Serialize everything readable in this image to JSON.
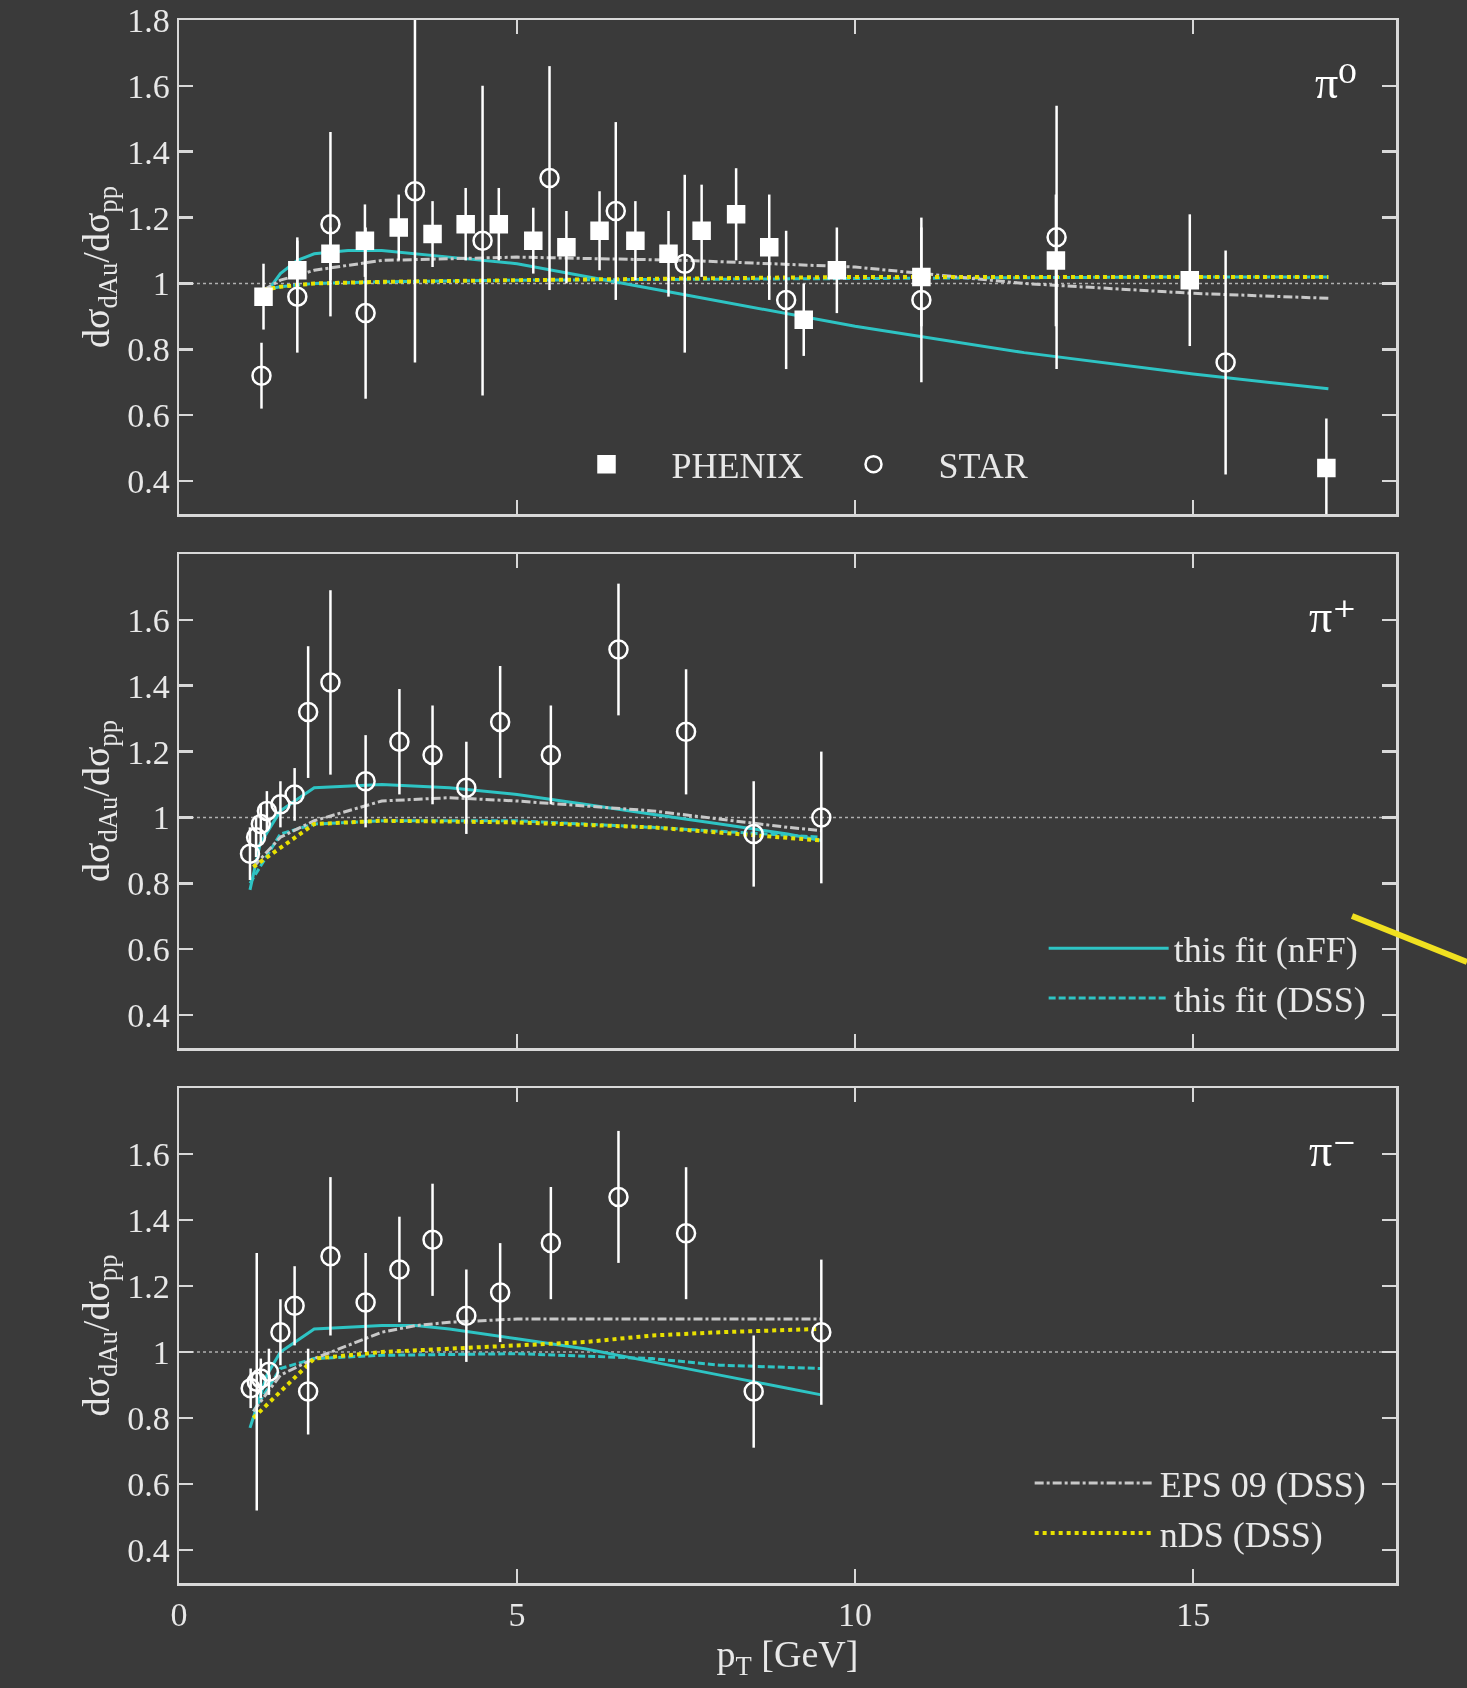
{
  "chart_data": [
    {
      "type": "scatter",
      "ylabel": "dσ$_{dAu}$/dσ$_{pp}$",
      "annotations": [
        "π⁰"
      ],
      "xlim": [
        0,
        18
      ],
      "ylim": [
        0.3,
        1.8
      ],
      "xticks": [
        0,
        5,
        10,
        15
      ],
      "yticks": [
        0.4,
        0.6,
        0.8,
        1,
        1.2,
        1.4,
        1.6,
        1.8
      ],
      "tick_labels": "y",
      "legend": "bottom",
      "ref_lines": [
        {
          "axis": "y",
          "value": 1,
          "color": "#b0b0b0",
          "line_style": "dotted"
        }
      ],
      "series": [
        {
          "type": "line",
          "color": "#2ec4c4",
          "line_style": "solid",
          "x": [
            1.25,
            1.5,
            1.75,
            2,
            2.5,
            3,
            4,
            5,
            7.5,
            10,
            12.5,
            15,
            17
          ],
          "values": [
            0.96,
            1.03,
            1.07,
            1.09,
            1.1,
            1.1,
            1.08,
            1.06,
            0.965,
            0.87,
            0.79,
            0.725,
            0.68
          ]
        },
        {
          "type": "line",
          "color": "#2ec4c4",
          "line_style": "dashed",
          "x": [
            1.25,
            1.5,
            2,
            3,
            5,
            10,
            15,
            17
          ],
          "values": [
            0.98,
            0.99,
            1.0,
            1.005,
            1.01,
            1.015,
            1.02,
            1.02
          ]
        },
        {
          "type": "line",
          "color": "#c8c8c8",
          "line_style": "dashdot",
          "x": [
            1.25,
            1.5,
            2,
            3,
            5,
            7.5,
            10,
            12.5,
            15,
            17
          ],
          "values": [
            0.98,
            1.01,
            1.04,
            1.07,
            1.08,
            1.07,
            1.05,
            1.0,
            0.97,
            0.955
          ]
        },
        {
          "type": "line",
          "color": "#e8e000",
          "line_style": "dotted",
          "x": [
            1.25,
            1.5,
            2,
            3,
            5,
            10,
            15,
            17
          ],
          "values": [
            0.98,
            0.99,
            1.0,
            1.005,
            1.01,
            1.02,
            1.02,
            1.02
          ]
        },
        {
          "name": "PHENIX",
          "marker": "square",
          "color": "#ffffff",
          "x": [
            1.25,
            1.75,
            2.24,
            2.75,
            3.25,
            3.75,
            4.24,
            4.73,
            5.24,
            5.73,
            6.22,
            6.75,
            7.24,
            7.73,
            8.24,
            8.73,
            9.24,
            9.73,
            10.98,
            12.97,
            14.95,
            16.97
          ],
          "values": [
            0.96,
            1.04,
            1.09,
            1.13,
            1.17,
            1.15,
            1.18,
            1.18,
            1.13,
            1.11,
            1.16,
            1.13,
            1.09,
            1.16,
            1.21,
            1.11,
            0.89,
            1.04,
            1.02,
            1.07,
            1.01,
            0.44
          ],
          "errors": [
            0.1,
            0.1,
            0.08,
            0.11,
            0.1,
            0.1,
            0.11,
            0.11,
            0.1,
            0.11,
            0.12,
            0.12,
            0.13,
            0.14,
            0.14,
            0.16,
            0.11,
            0.13,
            0.15,
            0.2,
            0.2,
            0.15
          ]
        },
        {
          "name": "STAR",
          "marker": "circle",
          "color": "#ffffff",
          "x": [
            1.22,
            1.75,
            2.24,
            2.76,
            3.49,
            4.49,
            5.48,
            6.46,
            7.48,
            8.98,
            10.98,
            12.98,
            15.48
          ],
          "values": [
            0.72,
            0.96,
            1.18,
            0.91,
            1.28,
            1.13,
            1.32,
            1.22,
            1.06,
            0.95,
            0.95,
            1.14,
            0.76
          ],
          "errors": [
            0.1,
            0.17,
            0.28,
            0.26,
            0.52,
            0.47,
            0.34,
            0.27,
            0.27,
            0.21,
            0.25,
            0.4,
            0.34
          ]
        }
      ]
    },
    {
      "type": "scatter",
      "ylabel": "dσ$_{dAu}$/dσ$_{pp}$",
      "annotations": [
        "π⁺"
      ],
      "xlim": [
        0,
        18
      ],
      "ylim": [
        0.3,
        1.8
      ],
      "xticks": [
        0,
        5,
        10,
        15
      ],
      "yticks": [
        0.4,
        0.6,
        0.8,
        1,
        1.2,
        1.4,
        1.6
      ],
      "tick_labels": "y",
      "legend": "bottom right",
      "ref_lines": [
        {
          "axis": "y",
          "value": 1,
          "color": "#b0b0b0",
          "line_style": "dotted"
        }
      ],
      "series": [
        {
          "type": "line",
          "name": "this fit (nFF)",
          "color": "#2ec4c4",
          "line_style": "solid",
          "x": [
            1.05,
            1.2,
            1.5,
            2,
            3,
            4,
            5,
            6,
            7,
            8,
            9,
            9.5
          ],
          "values": [
            0.78,
            0.92,
            1.02,
            1.09,
            1.1,
            1.09,
            1.07,
            1.04,
            1.01,
            0.98,
            0.95,
            0.93
          ]
        },
        {
          "type": "line",
          "name": "this fit (DSS)",
          "color": "#2ec4c4",
          "line_style": "dashed",
          "x": [
            1.05,
            1.5,
            2,
            3,
            5,
            7,
            9.5
          ],
          "values": [
            0.8,
            0.95,
            0.98,
            0.99,
            0.99,
            0.97,
            0.94
          ]
        },
        {
          "type": "line",
          "color": "#c8c8c8",
          "line_style": "dashdot",
          "x": [
            1.1,
            1.5,
            2,
            3,
            4,
            5,
            7,
            9,
            9.5
          ],
          "values": [
            0.85,
            0.94,
            0.99,
            1.05,
            1.06,
            1.05,
            1.02,
            0.97,
            0.96
          ]
        },
        {
          "type": "line",
          "color": "#e8e000",
          "line_style": "dotted",
          "x": [
            1.1,
            2,
            3,
            5,
            7,
            9.5
          ],
          "values": [
            0.85,
            0.98,
            0.99,
            0.985,
            0.97,
            0.93
          ]
        },
        {
          "marker": "circle",
          "color": "#ffffff",
          "x": [
            1.05,
            1.14,
            1.21,
            1.3,
            1.5,
            1.71,
            1.91,
            2.24,
            2.76,
            3.26,
            3.75,
            4.25,
            4.75,
            5.5,
            6.5,
            7.5,
            8.5,
            9.5
          ],
          "values": [
            0.89,
            0.94,
            0.98,
            1.02,
            1.04,
            1.07,
            1.32,
            1.41,
            1.11,
            1.23,
            1.19,
            1.09,
            1.29,
            1.19,
            1.51,
            1.26,
            0.95,
            1.0
          ],
          "errors": [
            0.08,
            0.06,
            0.06,
            0.06,
            0.07,
            0.08,
            0.2,
            0.28,
            0.14,
            0.16,
            0.15,
            0.14,
            0.17,
            0.15,
            0.2,
            0.19,
            0.16,
            0.2
          ]
        }
      ]
    },
    {
      "type": "scatter",
      "xlabel": "p$_{T}$ [GeV]",
      "ylabel": "dσ$_{dAu}$/dσ$_{pp}$",
      "annotations": [
        "π⁻"
      ],
      "xlim": [
        0,
        18
      ],
      "ylim": [
        0.3,
        1.8
      ],
      "xticks": [
        0,
        5,
        10,
        15
      ],
      "yticks": [
        0.4,
        0.6,
        0.8,
        1,
        1.2,
        1.4,
        1.6
      ],
      "legend": "bottom right",
      "ref_lines": [
        {
          "axis": "y",
          "value": 1,
          "color": "#b0b0b0",
          "line_style": "dotted"
        }
      ],
      "series": [
        {
          "type": "line",
          "color": "#2ec4c4",
          "line_style": "solid",
          "x": [
            1.05,
            1.3,
            1.5,
            2,
            3,
            3.5,
            4,
            5,
            6,
            7,
            8,
            9,
            9.5
          ],
          "values": [
            0.77,
            0.93,
            1.0,
            1.07,
            1.08,
            1.08,
            1.07,
            1.04,
            1.01,
            0.97,
            0.93,
            0.89,
            0.87
          ]
        },
        {
          "type": "line",
          "color": "#2ec4c4",
          "line_style": "dashed",
          "x": [
            1.1,
            1.5,
            2,
            3,
            5,
            7,
            8,
            9.5
          ],
          "values": [
            0.82,
            0.95,
            0.98,
            0.99,
            0.995,
            0.98,
            0.96,
            0.95
          ]
        },
        {
          "type": "line",
          "name": "EPS 09 (DSS)",
          "color": "#c8c8c8",
          "line_style": "dashdot",
          "x": [
            1.1,
            1.5,
            2,
            2.5,
            3,
            3.5,
            4,
            5,
            9.5
          ],
          "values": [
            0.82,
            0.93,
            0.98,
            1.02,
            1.06,
            1.08,
            1.09,
            1.1,
            1.1
          ]
        },
        {
          "type": "line",
          "name": "nDS (DSS)",
          "color": "#e8e000",
          "line_style": "dotted",
          "x": [
            1.1,
            2,
            3,
            4,
            5,
            6,
            7,
            8,
            9.5
          ],
          "values": [
            0.8,
            0.98,
            1.0,
            1.01,
            1.02,
            1.03,
            1.05,
            1.06,
            1.07
          ]
        },
        {
          "marker": "circle",
          "color": "#ffffff",
          "x": [
            1.06,
            1.15,
            1.21,
            1.33,
            1.5,
            1.71,
            1.91,
            2.24,
            2.76,
            3.26,
            3.75,
            4.25,
            4.75,
            5.5,
            6.5,
            7.5,
            8.5,
            9.5
          ],
          "values": [
            0.89,
            0.91,
            0.92,
            0.94,
            1.06,
            1.14,
            0.88,
            1.29,
            1.15,
            1.25,
            1.34,
            1.11,
            1.18,
            1.33,
            1.47,
            1.36,
            0.88,
            1.06
          ],
          "errors": [
            0.06,
            0.39,
            0.06,
            0.07,
            0.1,
            0.12,
            0.13,
            0.24,
            0.15,
            0.16,
            0.17,
            0.14,
            0.15,
            0.17,
            0.2,
            0.2,
            0.17,
            0.22
          ]
        }
      ]
    }
  ]
}
